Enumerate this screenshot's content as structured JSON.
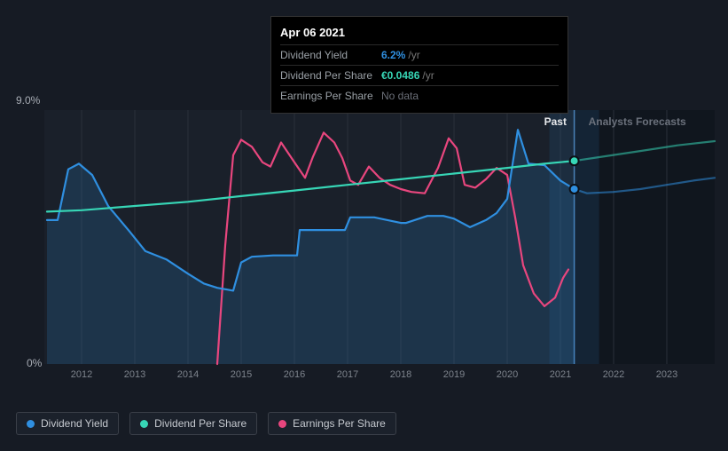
{
  "tooltip": {
    "date": "Apr 06 2021",
    "rows": {
      "yield": {
        "label": "Dividend Yield",
        "value": "6.2%",
        "unit": "/yr"
      },
      "dps": {
        "label": "Dividend Per Share",
        "value": "€0.0486",
        "unit": "/yr"
      },
      "eps": {
        "label": "Earnings Per Share",
        "value": "No data"
      }
    }
  },
  "chart": {
    "type": "line",
    "background_color": "#161b24",
    "plot_background": "#1a202a",
    "grid_color": "#2a303a",
    "axis_color": "#3a3f48",
    "tick_color": "#7d838c",
    "ylim": [
      0,
      9
    ],
    "y_ticks": [
      {
        "value": 9,
        "label": "9.0%"
      },
      {
        "value": 0,
        "label": "0%"
      }
    ],
    "x_min": 2011.3,
    "x_max": 2023.9,
    "x_ticks": [
      2012,
      2013,
      2014,
      2015,
      2016,
      2017,
      2018,
      2019,
      2020,
      2021,
      2022,
      2023
    ],
    "cursor_x": 2021.26,
    "past_label": "Past",
    "forecast_label": "Analysts Forecasts",
    "series": {
      "yield": {
        "label": "Dividend Yield",
        "color": "#2f8fe0",
        "fill": true,
        "fill_opacity": 0.18,
        "line_width": 2.2,
        "data": [
          [
            2011.35,
            5.1
          ],
          [
            2011.55,
            5.1
          ],
          [
            2011.75,
            6.9
          ],
          [
            2011.95,
            7.1
          ],
          [
            2012.2,
            6.7
          ],
          [
            2012.5,
            5.6
          ],
          [
            2012.9,
            4.7
          ],
          [
            2013.2,
            4.0
          ],
          [
            2013.6,
            3.7
          ],
          [
            2014.0,
            3.2
          ],
          [
            2014.3,
            2.85
          ],
          [
            2014.55,
            2.7
          ],
          [
            2014.85,
            2.6
          ],
          [
            2015.0,
            3.6
          ],
          [
            2015.2,
            3.8
          ],
          [
            2015.6,
            3.85
          ],
          [
            2016.05,
            3.85
          ],
          [
            2016.1,
            4.75
          ],
          [
            2016.5,
            4.75
          ],
          [
            2016.95,
            4.75
          ],
          [
            2017.05,
            5.2
          ],
          [
            2017.5,
            5.2
          ],
          [
            2018.0,
            5.0
          ],
          [
            2018.1,
            5.0
          ],
          [
            2018.5,
            5.25
          ],
          [
            2018.8,
            5.25
          ],
          [
            2019.0,
            5.15
          ],
          [
            2019.3,
            4.85
          ],
          [
            2019.6,
            5.1
          ],
          [
            2019.8,
            5.35
          ],
          [
            2020.0,
            5.85
          ],
          [
            2020.2,
            8.3
          ],
          [
            2020.4,
            7.1
          ],
          [
            2020.7,
            7.05
          ],
          [
            2021.0,
            6.5
          ],
          [
            2021.26,
            6.2
          ],
          [
            2021.5,
            6.05
          ],
          [
            2022.0,
            6.1
          ],
          [
            2022.5,
            6.2
          ],
          [
            2023.0,
            6.35
          ],
          [
            2023.5,
            6.5
          ],
          [
            2023.9,
            6.6
          ]
        ],
        "forecast_from": 2021.26,
        "markers": [
          {
            "x": 2021.26,
            "y": 6.2
          }
        ]
      },
      "dps": {
        "label": "Dividend Per Share",
        "color": "#37d6b6",
        "fill": false,
        "line_width": 2.2,
        "data": [
          [
            2011.35,
            5.4
          ],
          [
            2012.0,
            5.45
          ],
          [
            2013.0,
            5.6
          ],
          [
            2014.0,
            5.75
          ],
          [
            2015.0,
            5.95
          ],
          [
            2016.0,
            6.15
          ],
          [
            2017.0,
            6.35
          ],
          [
            2018.0,
            6.55
          ],
          [
            2019.0,
            6.75
          ],
          [
            2020.0,
            6.95
          ],
          [
            2020.7,
            7.1
          ],
          [
            2021.26,
            7.2
          ],
          [
            2021.8,
            7.35
          ],
          [
            2022.5,
            7.55
          ],
          [
            2023.2,
            7.75
          ],
          [
            2023.9,
            7.9
          ]
        ],
        "forecast_from": 2021.26,
        "markers": [
          {
            "x": 2021.26,
            "y": 7.2
          }
        ]
      },
      "eps": {
        "label": "Earnings Per Share",
        "color": "#e8467e",
        "fill": false,
        "line_width": 2.2,
        "data": [
          [
            2014.55,
            0.0
          ],
          [
            2014.7,
            4.2
          ],
          [
            2014.85,
            7.4
          ],
          [
            2015.0,
            7.95
          ],
          [
            2015.2,
            7.7
          ],
          [
            2015.4,
            7.15
          ],
          [
            2015.55,
            7.0
          ],
          [
            2015.75,
            7.85
          ],
          [
            2016.0,
            7.15
          ],
          [
            2016.2,
            6.6
          ],
          [
            2016.35,
            7.35
          ],
          [
            2016.55,
            8.2
          ],
          [
            2016.75,
            7.85
          ],
          [
            2016.9,
            7.3
          ],
          [
            2017.05,
            6.5
          ],
          [
            2017.2,
            6.35
          ],
          [
            2017.4,
            7.0
          ],
          [
            2017.6,
            6.6
          ],
          [
            2017.8,
            6.35
          ],
          [
            2018.0,
            6.2
          ],
          [
            2018.2,
            6.1
          ],
          [
            2018.45,
            6.05
          ],
          [
            2018.7,
            6.95
          ],
          [
            2018.9,
            8.0
          ],
          [
            2019.05,
            7.65
          ],
          [
            2019.2,
            6.35
          ],
          [
            2019.4,
            6.25
          ],
          [
            2019.6,
            6.55
          ],
          [
            2019.8,
            6.95
          ],
          [
            2020.0,
            6.7
          ],
          [
            2020.15,
            5.2
          ],
          [
            2020.3,
            3.5
          ],
          [
            2020.5,
            2.5
          ],
          [
            2020.7,
            2.05
          ],
          [
            2020.9,
            2.35
          ],
          [
            2021.05,
            3.05
          ],
          [
            2021.15,
            3.35
          ]
        ]
      }
    }
  },
  "legend": [
    {
      "key": "yield",
      "label": "Dividend Yield",
      "color": "#2f8fe0"
    },
    {
      "key": "dps",
      "label": "Dividend Per Share",
      "color": "#37d6b6"
    },
    {
      "key": "eps",
      "label": "Earnings Per Share",
      "color": "#e8467e"
    }
  ]
}
